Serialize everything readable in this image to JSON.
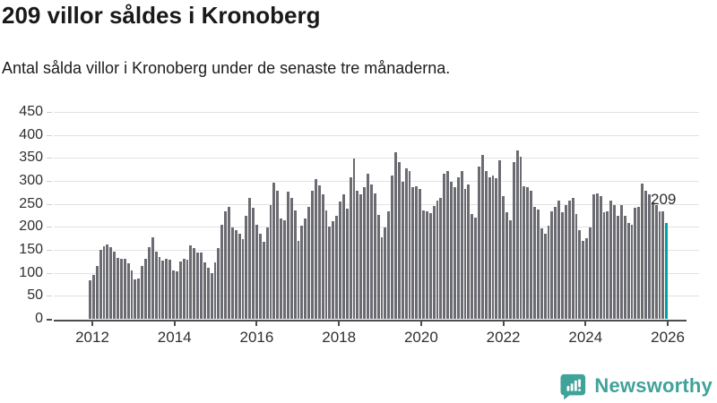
{
  "header": {
    "title": "209 villor såldes i Kronoberg",
    "subtitle": "Antal sålda villor i Kronoberg under de senaste tre månaderna."
  },
  "chart_data": {
    "type": "bar",
    "title": "209 villor såldes i Kronoberg",
    "subtitle": "Antal sålda villor i Kronoberg under de senaste tre månaderna.",
    "xlabel": "",
    "ylabel": "",
    "ylim": [
      0,
      450
    ],
    "yticks": [
      0,
      50,
      100,
      150,
      200,
      250,
      300,
      350,
      400,
      450
    ],
    "xticks": [
      2012,
      2014,
      2016,
      2018,
      2020,
      2022,
      2024,
      2026
    ],
    "x_domain": [
      2012,
      2026
    ],
    "grid": true,
    "period": "monthly",
    "bar_color": "#6b6b72",
    "values": [
      83,
      95,
      115,
      150,
      157,
      162,
      155,
      147,
      132,
      131,
      130,
      120,
      105,
      85,
      88,
      115,
      131,
      155,
      178,
      147,
      134,
      126,
      131,
      128,
      105,
      103,
      125,
      131,
      128,
      160,
      154,
      144,
      144,
      122,
      112,
      99,
      122,
      154,
      205,
      234,
      244,
      199,
      192,
      186,
      173,
      225,
      263,
      241,
      205,
      186,
      167,
      199,
      247,
      297,
      279,
      218,
      215,
      276,
      263,
      235,
      170,
      202,
      218,
      244,
      279,
      303,
      290,
      270,
      235,
      200,
      212,
      225,
      255,
      270,
      240,
      308,
      348,
      279,
      270,
      286,
      315,
      292,
      273,
      226,
      177,
      199,
      233,
      311,
      362,
      340,
      299,
      327,
      321,
      286,
      289,
      283,
      236,
      233,
      230,
      246,
      257,
      263,
      315,
      321,
      299,
      286,
      308,
      321,
      283,
      292,
      228,
      221,
      331,
      356,
      321,
      308,
      311,
      305,
      344,
      266,
      231,
      215,
      340,
      366,
      352,
      288,
      286,
      279,
      244,
      237,
      196,
      186,
      202,
      234,
      244,
      257,
      231,
      247,
      257,
      263,
      228,
      192,
      170,
      176,
      199,
      270,
      273,
      266,
      231,
      234,
      257,
      247,
      225,
      247,
      225,
      208,
      205,
      241,
      244,
      295,
      279,
      270,
      253,
      247,
      234,
      234,
      209
    ],
    "highlight": {
      "index": 166,
      "value": 209,
      "label": "209",
      "color": "#00a3a3"
    }
  },
  "footer": {
    "brand": "Newsworthy",
    "logo_icon": "bar-chart-speech-bubble-icon",
    "brand_color": "#40a39a"
  }
}
